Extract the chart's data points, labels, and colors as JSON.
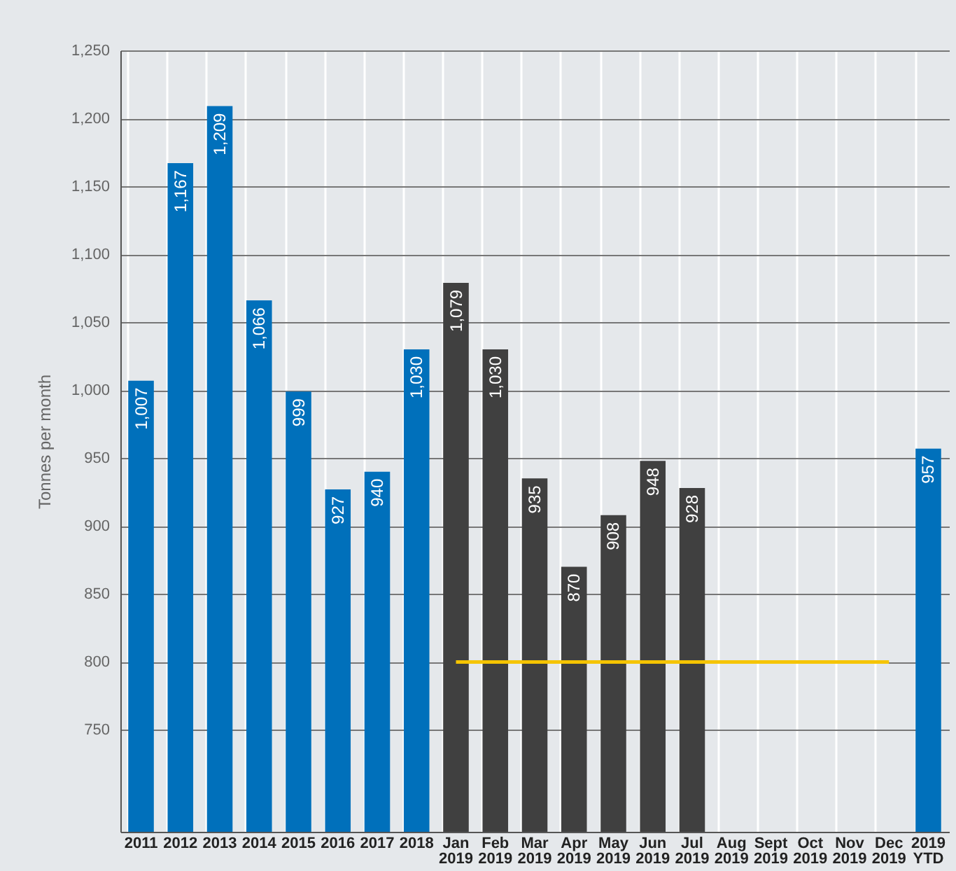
{
  "chart_data": {
    "type": "bar",
    "ylabel": "Tonnes per month",
    "categories": [
      "2011",
      "2012",
      "2013",
      "2014",
      "2015",
      "2016",
      "2017",
      "2018",
      "Jan 2019",
      "Feb 2019",
      "Mar 2019",
      "Apr 2019",
      "May 2019",
      "Jun 2019",
      "Jul 2019",
      "Aug 2019",
      "Sept 2019",
      "Oct 2019",
      "Nov 2019",
      "Dec 2019",
      "2019 YTD"
    ],
    "series": [
      {
        "values": [
          1007,
          1167,
          1209,
          1066,
          999,
          927,
          940,
          1030,
          1079,
          1030,
          935,
          870,
          908,
          948,
          928,
          null,
          null,
          null,
          null,
          null,
          957
        ],
        "value_labels": [
          "1,007",
          "1,167",
          "1,209",
          "1,066",
          "999",
          "927",
          "940",
          "1,030",
          "1,079",
          "1,030",
          "935",
          "870",
          "908",
          "948",
          "928",
          null,
          null,
          null,
          null,
          null,
          "957"
        ],
        "colors": [
          "#0070bb",
          "#0070bb",
          "#0070bb",
          "#0070bb",
          "#0070bb",
          "#0070bb",
          "#0070bb",
          "#0070bb",
          "#404040",
          "#404040",
          "#404040",
          "#404040",
          "#404040",
          "#404040",
          "#404040",
          "#404040",
          "#404040",
          "#404040",
          "#404040",
          "#404040",
          "#0070bb"
        ]
      },
      {
        "type": "line",
        "color": "#f5c400",
        "values": [
          null,
          null,
          null,
          null,
          null,
          null,
          null,
          null,
          800,
          800,
          800,
          800,
          800,
          800,
          800,
          800,
          800,
          800,
          800,
          800,
          null
        ]
      }
    ],
    "ylim": [
      675,
      1250
    ],
    "yticks": [
      750,
      800,
      850,
      900,
      950,
      {
        "value": 1000,
        "label": "1,000"
      },
      {
        "value": 1050,
        "label": "1,050"
      },
      {
        "value": 1100,
        "label": "1,100"
      },
      {
        "value": 1150,
        "label": "1,150"
      },
      {
        "value": 1200,
        "label": "1,200"
      },
      {
        "value": 1250,
        "label": "1,250"
      }
    ],
    "grid": true
  }
}
